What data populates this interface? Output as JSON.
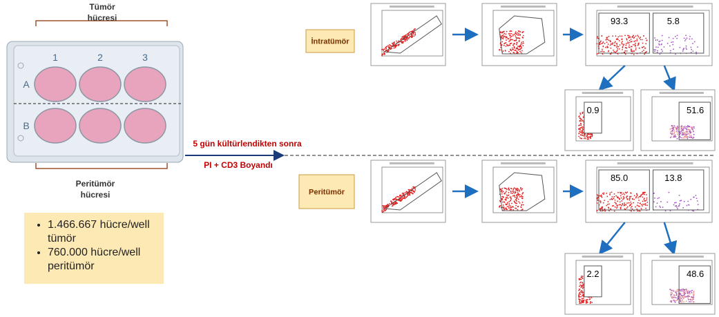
{
  "plate": {
    "top_label": [
      "Tümör",
      "hücresi"
    ],
    "bottom_label": [
      "Peritümör",
      "hücresi"
    ],
    "columns": [
      "1",
      "2",
      "3"
    ],
    "rows": [
      "A",
      "B"
    ]
  },
  "notes": [
    "1.466.667 hücre/well tümör",
    "760.000 hücre/well peritümör"
  ],
  "arrow": {
    "line1": "5 gün kültürlendikten sonra",
    "line2": "PI + CD3 Boyandı"
  },
  "groups": [
    {
      "label": "İntratümör",
      "gates": [
        "93.3",
        "5.8"
      ],
      "sub_gates": [
        "0.9",
        "51.6"
      ]
    },
    {
      "label": "Peritümör",
      "gates": [
        "85.0",
        "13.8"
      ],
      "sub_gates": [
        "2.2",
        "48.6"
      ]
    }
  ]
}
